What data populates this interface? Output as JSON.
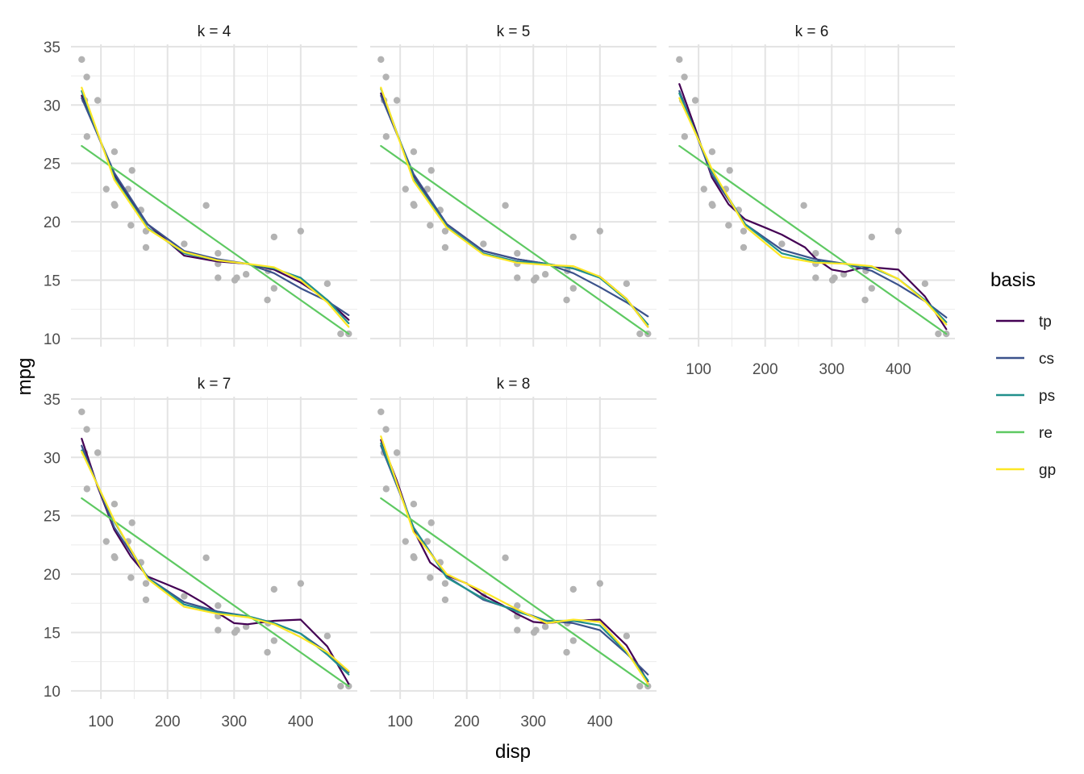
{
  "chart_data": {
    "type": "scatter",
    "xlabel": "disp",
    "ylabel": "mpg",
    "xlim": [
      55,
      485
    ],
    "ylim": [
      9.3,
      35.2
    ],
    "x_ticks": [
      100,
      200,
      300,
      400
    ],
    "y_ticks": [
      10,
      15,
      20,
      25,
      30,
      35
    ],
    "grid": true,
    "legend": {
      "title": "basis",
      "position": "right"
    },
    "colors": {
      "tp": "#440154",
      "cs": "#3b528b",
      "ps": "#21908c",
      "re": "#5ec962",
      "gp": "#fde725",
      "points": "#b3b3b3"
    },
    "points": [
      [
        160,
        21.0
      ],
      [
        160,
        21.0
      ],
      [
        108,
        22.8
      ],
      [
        258,
        21.4
      ],
      [
        360,
        18.7
      ],
      [
        225,
        18.1
      ],
      [
        360,
        14.3
      ],
      [
        146.7,
        24.4
      ],
      [
        140.8,
        22.8
      ],
      [
        167.6,
        19.2
      ],
      [
        167.6,
        17.8
      ],
      [
        275.8,
        16.4
      ],
      [
        275.8,
        17.3
      ],
      [
        275.8,
        15.2
      ],
      [
        472,
        10.4
      ],
      [
        460,
        10.4
      ],
      [
        440,
        14.7
      ],
      [
        78.7,
        32.4
      ],
      [
        75.7,
        30.4
      ],
      [
        71.1,
        33.9
      ],
      [
        120.1,
        21.5
      ],
      [
        318,
        15.5
      ],
      [
        304,
        15.2
      ],
      [
        350,
        13.3
      ],
      [
        400,
        19.2
      ],
      [
        79,
        27.3
      ],
      [
        120.3,
        26.0
      ],
      [
        95.1,
        30.4
      ],
      [
        351,
        15.8
      ],
      [
        145,
        19.7
      ],
      [
        301,
        15.0
      ],
      [
        121,
        21.4
      ]
    ],
    "panels": [
      {
        "label": "k = 4",
        "series": [
          {
            "name": "tp",
            "x": [
              71.1,
              120,
              170,
              225,
              275,
              320,
              360,
              400,
              440,
              472
            ],
            "y": [
              30.8,
              24.0,
              19.8,
              17.1,
              16.6,
              16.4,
              15.9,
              14.8,
              13.3,
              11.6
            ]
          },
          {
            "name": "cs",
            "x": [
              71.1,
              120,
              170,
              225,
              275,
              320,
              360,
              400,
              440,
              472
            ],
            "y": [
              30.6,
              24.2,
              19.8,
              17.5,
              16.8,
              16.4,
              15.6,
              14.3,
              13.2,
              12.0
            ]
          },
          {
            "name": "ps",
            "x": [
              71.1,
              120,
              170,
              225,
              275,
              320,
              360,
              400,
              440,
              472
            ],
            "y": [
              31.2,
              23.8,
              19.5,
              17.3,
              16.7,
              16.4,
              16.0,
              15.2,
              13.3,
              11.3
            ]
          },
          {
            "name": "re",
            "x": [
              71.1,
              472
            ],
            "y": [
              26.5,
              10.4
            ]
          },
          {
            "name": "gp",
            "x": [
              71.1,
              120,
              170,
              225,
              275,
              320,
              360,
              400,
              440,
              472
            ],
            "y": [
              31.5,
              23.6,
              19.4,
              17.4,
              16.7,
              16.4,
              16.1,
              15.0,
              13.1,
              11.0
            ]
          }
        ]
      },
      {
        "label": "k = 5",
        "series": [
          {
            "name": "tp",
            "x": [
              71.1,
              120,
              170,
              225,
              275,
              320,
              360,
              400,
              440,
              472
            ],
            "y": [
              31.0,
              24.0,
              19.8,
              17.5,
              16.8,
              16.4,
              16.0,
              15.3,
              13.4,
              11.0
            ]
          },
          {
            "name": "cs",
            "x": [
              71.1,
              120,
              170,
              225,
              275,
              320,
              360,
              400,
              440,
              472
            ],
            "y": [
              30.8,
              24.1,
              19.8,
              17.5,
              16.8,
              16.4,
              15.6,
              14.4,
              13.1,
              11.9
            ]
          },
          {
            "name": "ps",
            "x": [
              71.1,
              120,
              170,
              225,
              275,
              320,
              360,
              400,
              440,
              472
            ],
            "y": [
              31.4,
              23.7,
              19.6,
              17.3,
              16.6,
              16.4,
              16.0,
              15.2,
              13.3,
              11.2
            ]
          },
          {
            "name": "re",
            "x": [
              71.1,
              472
            ],
            "y": [
              26.5,
              10.4
            ]
          },
          {
            "name": "gp",
            "x": [
              71.1,
              120,
              170,
              225,
              275,
              320,
              360,
              400,
              440,
              472
            ],
            "y": [
              31.5,
              23.5,
              19.5,
              17.2,
              16.5,
              16.3,
              16.2,
              15.3,
              13.4,
              11.0
            ]
          }
        ]
      },
      {
        "label": "k = 6",
        "series": [
          {
            "name": "tp",
            "x": [
              71.1,
              95,
              120,
              145,
              170,
              200,
              225,
              260,
              275,
              300,
              320,
              340,
              360,
              400,
              440,
              472
            ],
            "y": [
              31.8,
              28.0,
              23.8,
              21.5,
              20.2,
              19.5,
              18.9,
              17.8,
              16.9,
              15.9,
              15.7,
              16.0,
              16.1,
              15.9,
              13.6,
              10.8
            ]
          },
          {
            "name": "cs",
            "x": [
              71.1,
              120,
              170,
              225,
              275,
              320,
              360,
              400,
              440,
              472
            ],
            "y": [
              31.2,
              24.0,
              19.8,
              17.6,
              16.8,
              16.4,
              15.8,
              14.6,
              13.2,
              11.8
            ]
          },
          {
            "name": "ps",
            "x": [
              71.1,
              120,
              170,
              225,
              275,
              320,
              360,
              400,
              440,
              472
            ],
            "y": [
              31.0,
              24.3,
              19.8,
              17.3,
              16.6,
              16.4,
              16.1,
              15.1,
              13.3,
              11.4
            ]
          },
          {
            "name": "re",
            "x": [
              71.1,
              472
            ],
            "y": [
              26.5,
              10.4
            ]
          },
          {
            "name": "gp",
            "x": [
              71.1,
              120,
              170,
              225,
              275,
              320,
              360,
              400,
              440,
              472
            ],
            "y": [
              30.6,
              24.5,
              19.6,
              17.0,
              16.5,
              16.4,
              16.2,
              15.1,
              13.2,
              11.2
            ]
          }
        ]
      },
      {
        "label": "k = 7",
        "series": [
          {
            "name": "tp",
            "x": [
              71.1,
              95,
              120,
              145,
              170,
              200,
              225,
              255,
              275,
              300,
              320,
              360,
              400,
              440,
              472
            ],
            "y": [
              31.6,
              27.5,
              23.8,
              21.5,
              19.8,
              19.1,
              18.5,
              17.5,
              16.7,
              15.8,
              15.7,
              16.0,
              16.1,
              13.8,
              10.6
            ]
          },
          {
            "name": "cs",
            "x": [
              71.1,
              120,
              170,
              225,
              275,
              320,
              360,
              400,
              440,
              472
            ],
            "y": [
              31.0,
              24.0,
              19.7,
              17.6,
              16.8,
              16.4,
              15.8,
              14.9,
              13.3,
              11.6
            ]
          },
          {
            "name": "ps",
            "x": [
              71.1,
              120,
              170,
              225,
              275,
              320,
              360,
              400,
              440,
              472
            ],
            "y": [
              30.6,
              24.5,
              19.7,
              17.4,
              16.7,
              16.4,
              15.8,
              14.9,
              13.1,
              11.4
            ]
          },
          {
            "name": "re",
            "x": [
              71.1,
              472
            ],
            "y": [
              26.5,
              10.4
            ]
          },
          {
            "name": "gp",
            "x": [
              71.1,
              120,
              170,
              225,
              275,
              320,
              360,
              400,
              440,
              472
            ],
            "y": [
              30.5,
              24.6,
              19.6,
              17.2,
              16.6,
              16.3,
              15.7,
              14.6,
              13.3,
              11.7
            ]
          }
        ]
      },
      {
        "label": "k = 8",
        "series": [
          {
            "name": "tp",
            "x": [
              71.1,
              95,
              120,
              145,
              170,
              200,
              225,
              255,
              275,
              300,
              320,
              360,
              400,
              440,
              472
            ],
            "y": [
              31.5,
              28.0,
              23.8,
              21.0,
              19.9,
              19.2,
              18.2,
              17.3,
              16.6,
              15.9,
              15.8,
              16.0,
              16.1,
              13.9,
              10.8
            ]
          },
          {
            "name": "cs",
            "x": [
              71.1,
              120,
              170,
              225,
              275,
              320,
              360,
              400,
              440,
              472
            ],
            "y": [
              31.0,
              24.0,
              19.8,
              17.8,
              16.9,
              16.0,
              15.8,
              15.2,
              13.2,
              11.4
            ]
          },
          {
            "name": "ps",
            "x": [
              71.1,
              120,
              170,
              225,
              275,
              320,
              360,
              400,
              440,
              472
            ],
            "y": [
              31.2,
              24.0,
              19.7,
              17.9,
              16.8,
              16.0,
              16.0,
              15.6,
              13.3,
              10.9
            ]
          },
          {
            "name": "re",
            "x": [
              71.1,
              472
            ],
            "y": [
              26.5,
              10.4
            ]
          },
          {
            "name": "gp",
            "x": [
              71.1,
              120,
              170,
              225,
              275,
              320,
              360,
              400,
              440,
              472
            ],
            "y": [
              31.8,
              23.6,
              20.0,
              18.5,
              17.0,
              15.8,
              16.1,
              15.9,
              13.4,
              10.6
            ]
          }
        ]
      }
    ]
  }
}
